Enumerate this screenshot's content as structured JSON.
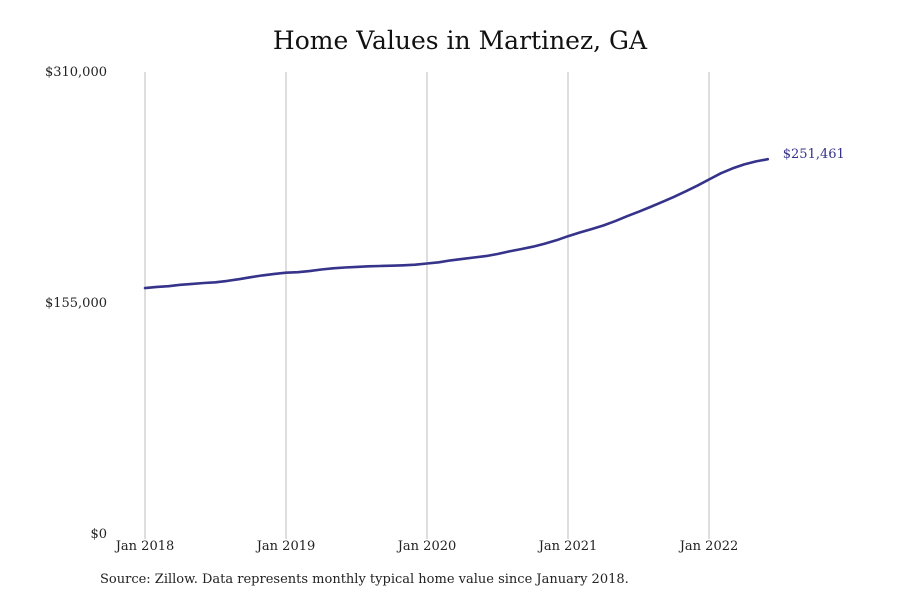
{
  "chart_data": {
    "type": "line",
    "title": "Home Values in Martinez, GA",
    "xlabel": "",
    "ylabel": "",
    "ylim": [
      0,
      310000
    ],
    "y_ticks": [
      {
        "value": 0,
        "label": "$0"
      },
      {
        "value": 155000,
        "label": "$155,000"
      },
      {
        "value": 310000,
        "label": "$310,000"
      }
    ],
    "x_ticks": [
      {
        "value": "2018-01",
        "label": "Jan 2018"
      },
      {
        "value": "2019-01",
        "label": "Jan 2019"
      },
      {
        "value": "2020-01",
        "label": "Jan 2020"
      },
      {
        "value": "2021-01",
        "label": "Jan 2021"
      },
      {
        "value": "2022-01",
        "label": "Jan 2022"
      }
    ],
    "grid": "vertical",
    "line_color": "#35338a",
    "end_label": "$251,461",
    "series": [
      {
        "x": [
          "2018-01",
          "2018-02",
          "2018-03",
          "2018-04",
          "2018-05",
          "2018-06",
          "2018-07",
          "2018-08",
          "2018-09",
          "2018-10",
          "2018-11",
          "2018-12",
          "2019-01",
          "2019-02",
          "2019-03",
          "2019-04",
          "2019-05",
          "2019-06",
          "2019-07",
          "2019-08",
          "2019-09",
          "2019-10",
          "2019-11",
          "2019-12",
          "2020-01",
          "2020-02",
          "2020-03",
          "2020-04",
          "2020-05",
          "2020-06",
          "2020-07",
          "2020-08",
          "2020-09",
          "2020-10",
          "2020-11",
          "2020-12",
          "2021-01",
          "2021-02",
          "2021-03",
          "2021-04",
          "2021-05",
          "2021-06",
          "2021-07",
          "2021-08",
          "2021-09",
          "2021-10",
          "2021-11",
          "2021-12",
          "2022-01",
          "2022-02",
          "2022-03",
          "2022-04",
          "2022-05",
          "2022-06"
        ],
        "values": [
          165000,
          165800,
          166300,
          167200,
          167800,
          168400,
          168900,
          169800,
          171000,
          172300,
          173500,
          174500,
          175300,
          175700,
          176400,
          177500,
          178300,
          178800,
          179200,
          179600,
          179800,
          180000,
          180300,
          180700,
          181500,
          182300,
          183600,
          184600,
          185500,
          186500,
          187900,
          189600,
          191200,
          192800,
          194800,
          197100,
          199800,
          202300,
          204600,
          207000,
          209900,
          213200,
          216200,
          219400,
          222700,
          226200,
          229900,
          233700,
          237900,
          242000,
          245300,
          248000,
          250000,
          251461
        ]
      }
    ]
  },
  "source_text": "Source: Zillow. Data represents monthly typical home value since January 2018."
}
